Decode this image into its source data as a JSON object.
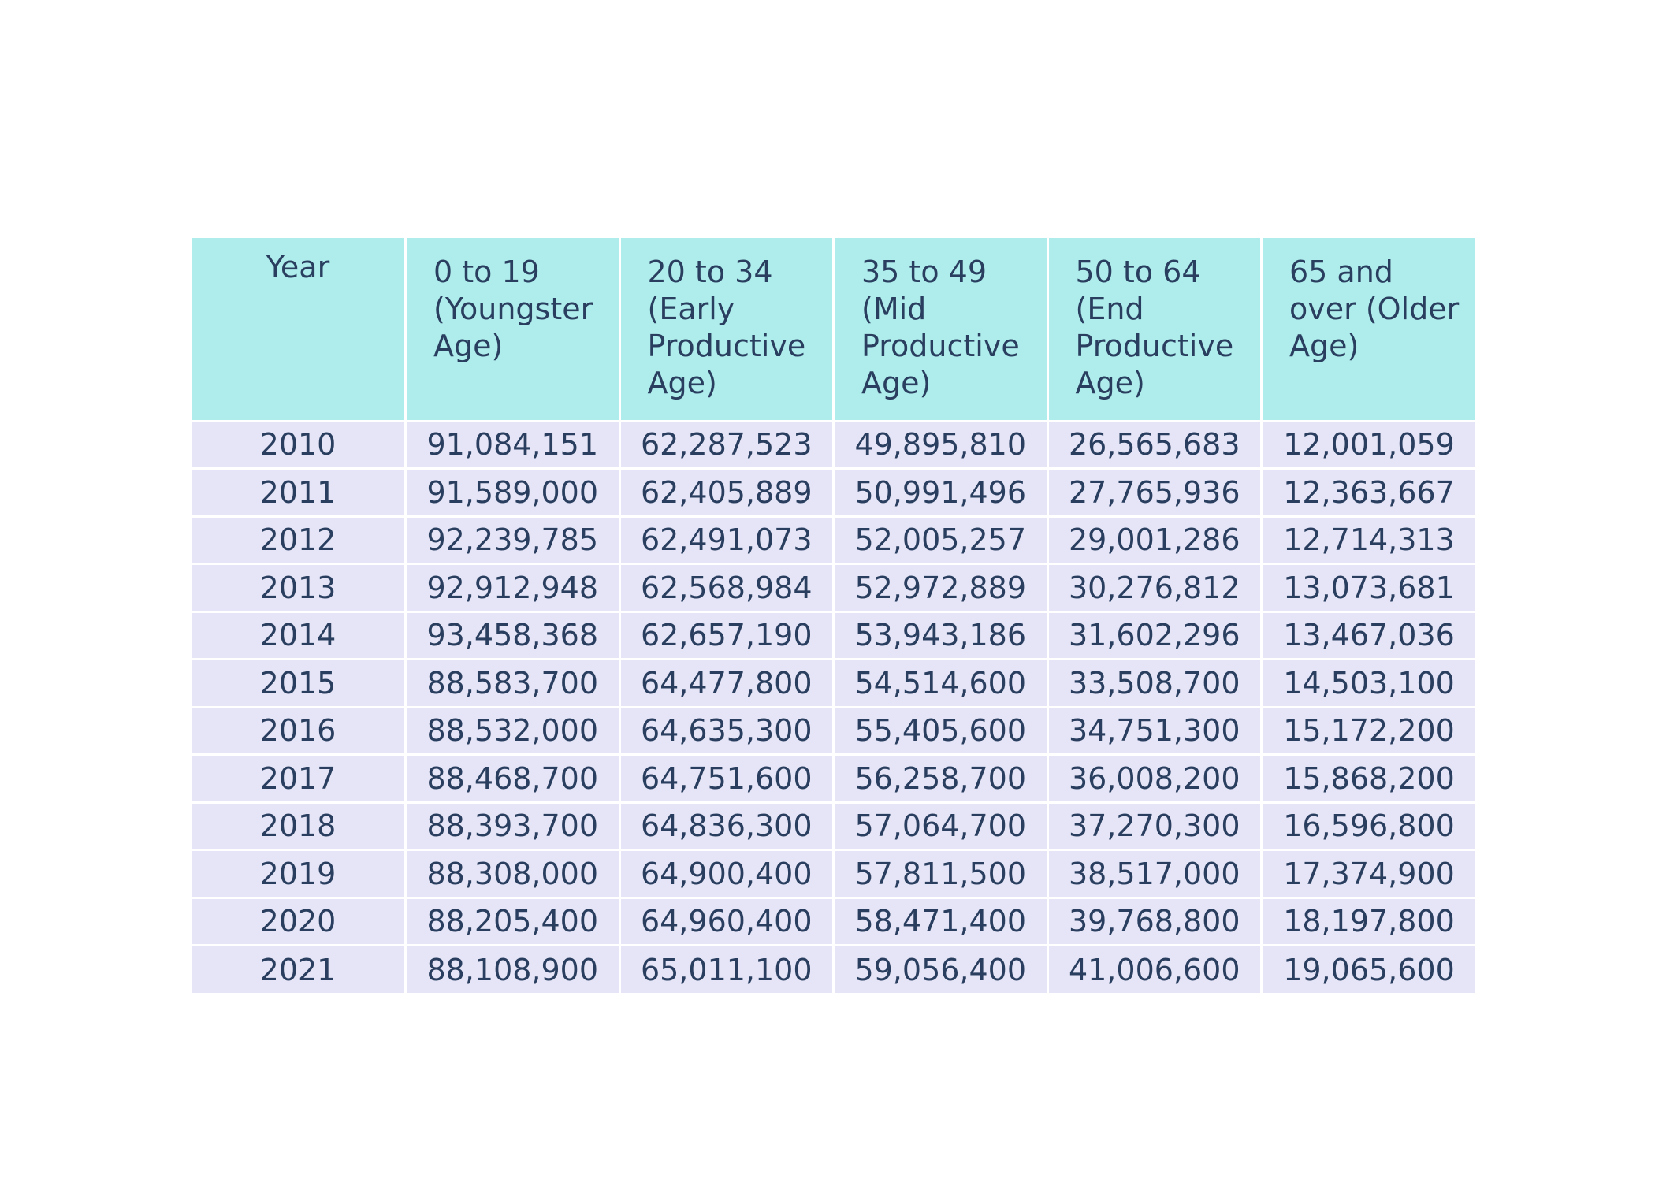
{
  "chart_data": {
    "type": "table",
    "columns": [
      "Year",
      "0 to 19 (Youngster Age)",
      "20 to 34 (Early Productive Age)",
      "35 to 49 (Mid Productive Age)",
      "50 to 64 (End Productive Age)",
      "65 and over (Older Age)"
    ],
    "rows": [
      [
        "2010",
        "91,084,151",
        "62,287,523",
        "49,895,810",
        "26,565,683",
        "12,001,059"
      ],
      [
        "2011",
        "91,589,000",
        "62,405,889",
        "50,991,496",
        "27,765,936",
        "12,363,667"
      ],
      [
        "2012",
        "92,239,785",
        "62,491,073",
        "52,005,257",
        "29,001,286",
        "12,714,313"
      ],
      [
        "2013",
        "92,912,948",
        "62,568,984",
        "52,972,889",
        "30,276,812",
        "13,073,681"
      ],
      [
        "2014",
        "93,458,368",
        "62,657,190",
        "53,943,186",
        "31,602,296",
        "13,467,036"
      ],
      [
        "2015",
        "88,583,700",
        "64,477,800",
        "54,514,600",
        "33,508,700",
        "14,503,100"
      ],
      [
        "2016",
        "88,532,000",
        "64,635,300",
        "55,405,600",
        "34,751,300",
        "15,172,200"
      ],
      [
        "2017",
        "88,468,700",
        "64,751,600",
        "56,258,700",
        "36,008,200",
        "15,868,200"
      ],
      [
        "2018",
        "88,393,700",
        "64,836,300",
        "57,064,700",
        "37,270,300",
        "16,596,800"
      ],
      [
        "2019",
        "88,308,000",
        "64,900,400",
        "57,811,500",
        "38,517,000",
        "17,374,900"
      ],
      [
        "2020",
        "88,205,400",
        "64,960,400",
        "58,471,400",
        "39,768,800",
        "18,197,800"
      ],
      [
        "2021",
        "88,108,900",
        "65,011,100",
        "59,056,400",
        "41,006,600",
        "19,065,600"
      ]
    ],
    "colors": {
      "header_fill": "#afecec",
      "cell_fill": "#e5e5f7",
      "text": "#2a3f5f",
      "border": "#ffffff"
    }
  }
}
